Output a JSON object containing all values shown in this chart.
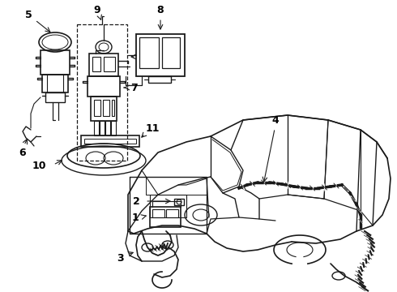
{
  "bg_color": "#ffffff",
  "line_color": "#1a1a1a",
  "label_color": "#000000",
  "fig_width": 4.9,
  "fig_height": 3.6,
  "dpi": 100,
  "xlim": [
    0,
    490
  ],
  "ylim": [
    0,
    360
  ]
}
